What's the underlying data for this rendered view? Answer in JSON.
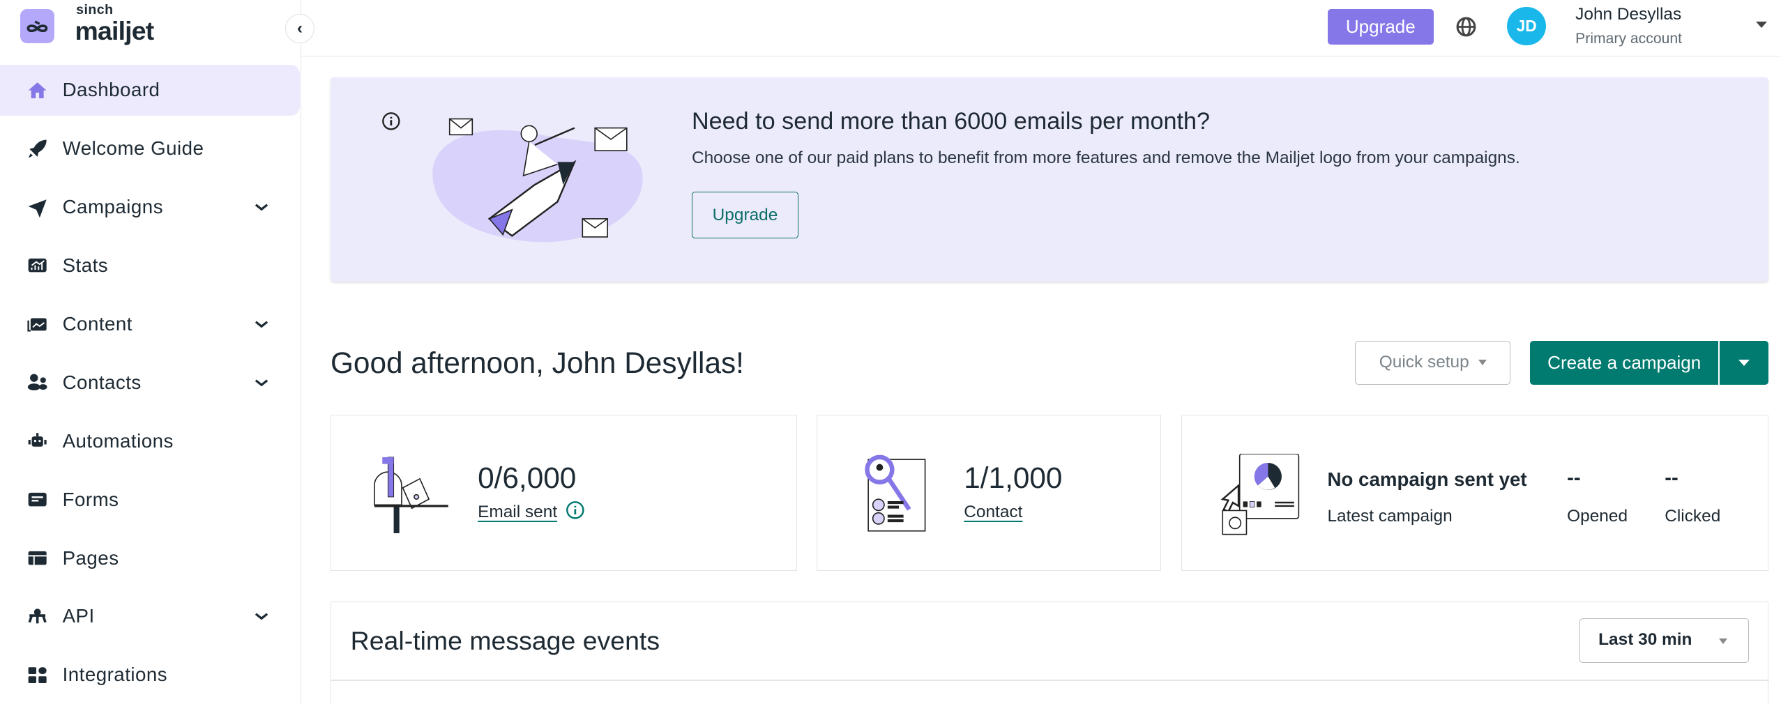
{
  "brand": {
    "sinch": "sinch",
    "mailjet": "mailjet",
    "logo_color": "#b4a8fb"
  },
  "sidebar": {
    "items": [
      {
        "label": "Dashboard",
        "icon": "home-icon",
        "active": true
      },
      {
        "label": "Welcome Guide",
        "icon": "rocket-icon"
      },
      {
        "label": "Campaigns",
        "icon": "paper-plane-icon",
        "expandable": true
      },
      {
        "label": "Stats",
        "icon": "chart-icon"
      },
      {
        "label": "Content",
        "icon": "image-gallery-icon",
        "expandable": true
      },
      {
        "label": "Contacts",
        "icon": "people-icon",
        "expandable": true
      },
      {
        "label": "Automations",
        "icon": "robot-icon"
      },
      {
        "label": "Forms",
        "icon": "form-icon"
      },
      {
        "label": "Pages",
        "icon": "layout-icon"
      },
      {
        "label": "API",
        "icon": "api-icon",
        "expandable": true
      },
      {
        "label": "Integrations",
        "icon": "grid-icon"
      }
    ]
  },
  "header": {
    "upgrade": "Upgrade",
    "avatar_initials": "JD",
    "user_name": "John Desyllas",
    "account": "Primary account",
    "avatar_color": "#1ab7ea",
    "upgrade_color": "#8677e8"
  },
  "banner": {
    "title": "Need to send more than 6000 emails per month?",
    "subtitle": "Choose one of our paid plans to benefit from more features and remove the Mailjet logo from your campaigns.",
    "button": "Upgrade"
  },
  "main": {
    "greeting": "Good afternoon, John Desyllas!",
    "quick_setup": "Quick setup",
    "create_campaign": "Create a campaign",
    "accent": "#017a70",
    "cards": {
      "emails": {
        "value": "0/6,000",
        "label": "Email sent"
      },
      "contacts": {
        "value": "1/1,000",
        "label": "Contact"
      },
      "campaign": {
        "title": "No campaign sent yet",
        "subtitle": "Latest campaign",
        "opened_value": "--",
        "opened_label": "Opened",
        "clicked_value": "--",
        "clicked_label": "Clicked"
      }
    },
    "realtime": {
      "title": "Real-time message events",
      "range": "Last 30 min"
    }
  }
}
